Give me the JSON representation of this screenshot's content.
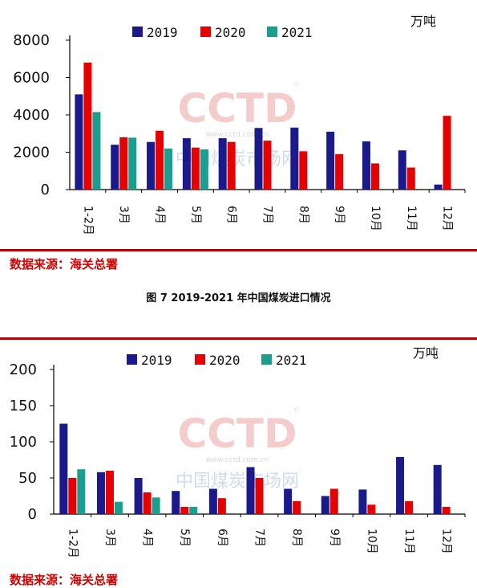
{
  "chart_data": [
    {
      "type": "bar",
      "title": "",
      "unit": "万吨",
      "categories": [
        "1-2月",
        "3月",
        "4月",
        "5月",
        "6月",
        "7月",
        "8月",
        "9月",
        "10月",
        "11月",
        "12月"
      ],
      "ylim": [
        0,
        8000
      ],
      "yticks": [
        0,
        2000,
        4000,
        6000,
        8000
      ],
      "grid": false,
      "legend": "top-center",
      "series": [
        {
          "name": "2019",
          "color": "#1a1a8c",
          "values": [
            5100,
            2400,
            2550,
            2750,
            2750,
            3300,
            3320,
            3100,
            2580,
            2100,
            270
          ]
        },
        {
          "name": "2020",
          "color": "#e60000",
          "values": [
            6800,
            2800,
            3150,
            2250,
            2550,
            2620,
            2050,
            1900,
            1400,
            1180,
            3950
          ]
        },
        {
          "name": "2021",
          "color": "#1a9e8f",
          "values": [
            4150,
            2780,
            2200,
            2150,
            null,
            null,
            null,
            null,
            null,
            null,
            null
          ]
        }
      ]
    },
    {
      "type": "bar",
      "title": "",
      "unit": "万吨",
      "categories": [
        "1-2月",
        "3月",
        "4月",
        "5月",
        "6月",
        "7月",
        "8月",
        "9月",
        "10月",
        "11月",
        "12月"
      ],
      "ylim": [
        0,
        200
      ],
      "yticks": [
        0,
        50,
        100,
        150,
        200
      ],
      "grid": false,
      "legend": "top-center",
      "series": [
        {
          "name": "2019",
          "color": "#1a1a8c",
          "values": [
            125,
            58,
            50,
            32,
            35,
            65,
            35,
            25,
            34,
            79,
            68
          ]
        },
        {
          "name": "2020",
          "color": "#e60000",
          "values": [
            50,
            60,
            30,
            10,
            22,
            50,
            18,
            35,
            13,
            18,
            10
          ]
        },
        {
          "name": "2021",
          "color": "#1a9e8f",
          "values": [
            62,
            17,
            23,
            10,
            null,
            null,
            null,
            null,
            null,
            null,
            null
          ]
        }
      ]
    }
  ],
  "source_text": "数据来源：海关总署",
  "source_text_2": "数据来源：海关总署",
  "caption": "图 7   2019-2021 年中国煤炭进口情况",
  "watermark": {
    "logo": "CCTD",
    "registered": "®",
    "site": "www.cctd.com.cn",
    "name": "中国煤炭市场网"
  }
}
